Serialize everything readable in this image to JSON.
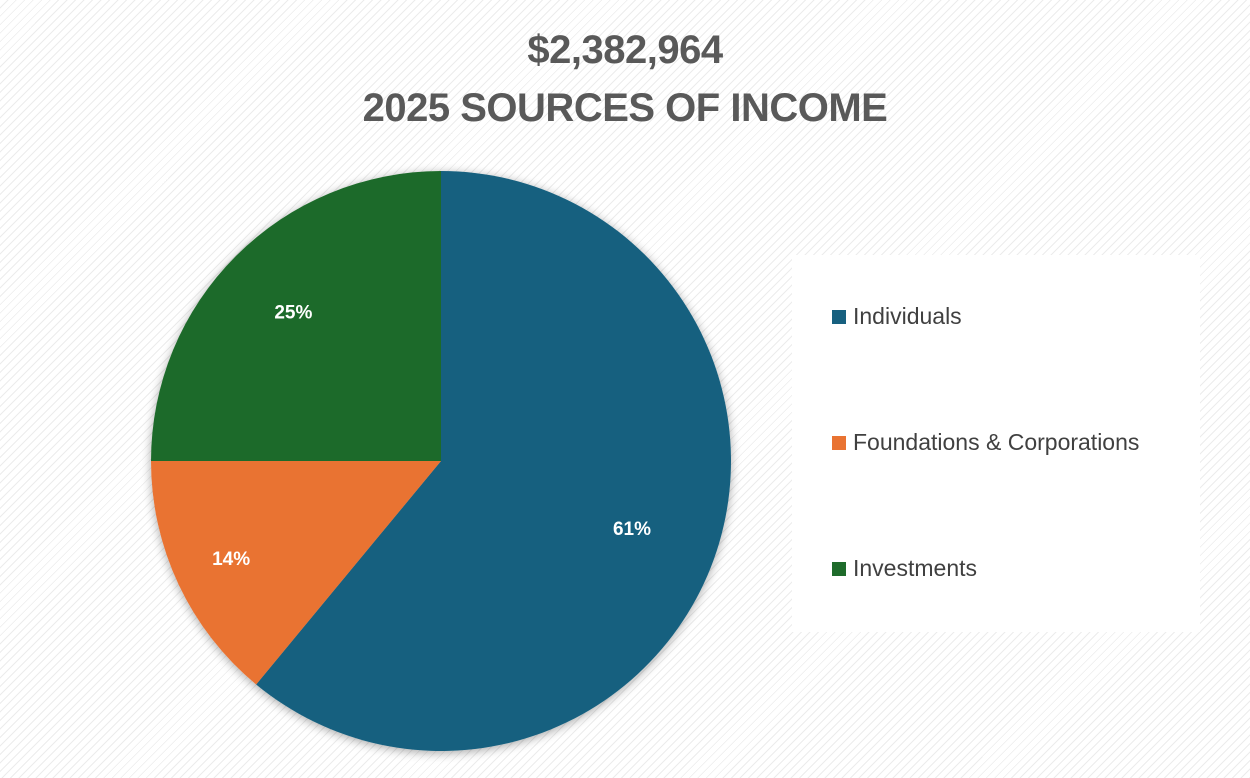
{
  "chart_data": {
    "type": "pie",
    "title": "$2,382,964",
    "subtitle": "2025 SOURCES OF INCOME",
    "series": [
      {
        "values": [
          61,
          14,
          25
        ],
        "value_format": "percent"
      }
    ],
    "categories": [
      "Individuals",
      "Foundations & Corporations",
      "Investments"
    ],
    "data_labels": [
      "61%",
      "14%",
      "25%"
    ],
    "colors": [
      "#17607f",
      "#e97332",
      "#1e6b2b"
    ],
    "legend_position": "right"
  }
}
